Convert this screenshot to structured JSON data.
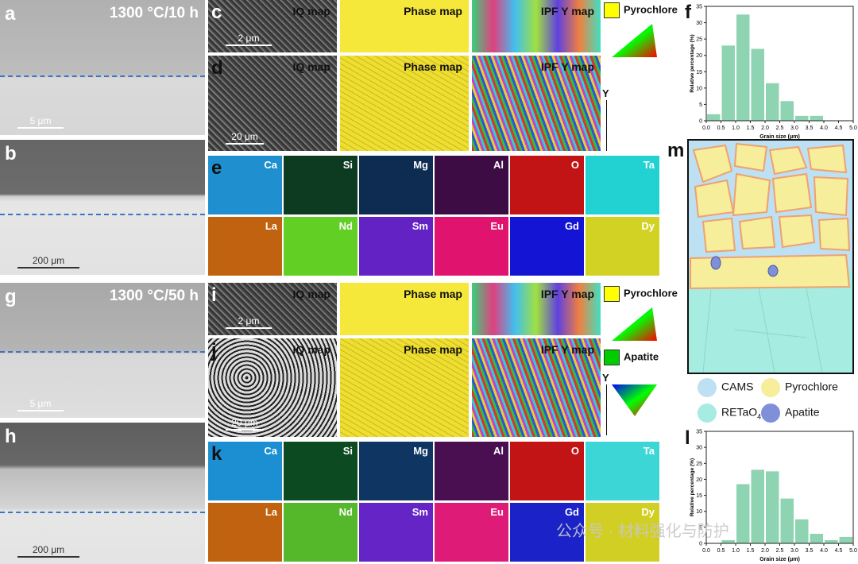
{
  "panels": {
    "a": {
      "label": "a",
      "title": "1300 °C/10 h",
      "scale": "5 μm"
    },
    "b": {
      "label": "b",
      "scale": "200 μm"
    },
    "c": {
      "label": "c",
      "scale": "2 μm",
      "maps": [
        "IQ map",
        "Phase map",
        "IPF Y map"
      ]
    },
    "d": {
      "label": "d",
      "scale": "20 μm",
      "maps": [
        "IQ map",
        "Phase map",
        "IPF Y map"
      ]
    },
    "e": {
      "label": "e",
      "elements": [
        {
          "name": "Ca",
          "color": "#1f8fd0"
        },
        {
          "name": "Si",
          "color": "#0d3b22"
        },
        {
          "name": "Mg",
          "color": "#0e2c52"
        },
        {
          "name": "Al",
          "color": "#3d0c44"
        },
        {
          "name": "O",
          "color": "#c21414"
        },
        {
          "name": "Ta",
          "color": "#22d2d2"
        },
        {
          "name": "La",
          "color": "#c0620f"
        },
        {
          "name": "Nd",
          "color": "#62cf24"
        },
        {
          "name": "Sm",
          "color": "#6222c4"
        },
        {
          "name": "Eu",
          "color": "#e0146e"
        },
        {
          "name": "Gd",
          "color": "#1414d4"
        },
        {
          "name": "Dy",
          "color": "#d2d224"
        }
      ]
    },
    "f": {
      "label": "f"
    },
    "g": {
      "label": "g",
      "title": "1300 °C/50 h",
      "scale": "5 μm"
    },
    "h": {
      "label": "h",
      "scale": "200 μm"
    },
    "i": {
      "label": "i",
      "scale": "2 μm",
      "maps": [
        "IQ map",
        "Phase map",
        "IPF Y map"
      ]
    },
    "j": {
      "label": "j",
      "scale": "20 μm",
      "maps": [
        "IQ map",
        "Phase map",
        "IPF Y map"
      ]
    },
    "k": {
      "label": "k",
      "elements": [
        {
          "name": "Ca",
          "color": "#1c8fd2"
        },
        {
          "name": "Si",
          "color": "#0c4a22"
        },
        {
          "name": "Mg",
          "color": "#0f3563"
        },
        {
          "name": "Al",
          "color": "#4a0f50"
        },
        {
          "name": "O",
          "color": "#c21414"
        },
        {
          "name": "Ta",
          "color": "#3cd6d6"
        },
        {
          "name": "La",
          "color": "#c0620f"
        },
        {
          "name": "Nd",
          "color": "#55b82a"
        },
        {
          "name": "Sm",
          "color": "#6424c6"
        },
        {
          "name": "Eu",
          "color": "#de1c78"
        },
        {
          "name": "Gd",
          "color": "#1a22c8"
        },
        {
          "name": "Dy",
          "color": "#d2cf24"
        }
      ]
    },
    "l": {
      "label": "l"
    },
    "m": {
      "label": "m",
      "legend": [
        {
          "text": "CAMS",
          "color": "#bde0f2"
        },
        {
          "text": "Pyrochlore",
          "color": "#f6ee9a"
        },
        {
          "text": "RETaO",
          "sub": "4",
          "color": "#a6ece0"
        },
        {
          "text": "Apatite",
          "color": "#7f8fd8"
        }
      ]
    }
  },
  "legend_top": {
    "text": "Pyrochlore",
    "color": "#ffff00"
  },
  "legend_bottom": [
    {
      "text": "Pyrochlore",
      "color": "#ffff00"
    },
    {
      "text": "Apatite",
      "color": "#00cc00"
    }
  ],
  "axis_label": "Y",
  "watermark": "公众号 · 材料强化与防护",
  "histograms": [
    {
      "type": "histogram",
      "bins": [
        0,
        0.5,
        1,
        1.5,
        2,
        2.5,
        3,
        3.5,
        4
      ],
      "values": [
        2,
        23,
        32.5,
        22,
        11.5,
        6,
        1.5,
        1.5
      ],
      "color": "#8fd4b2",
      "xlim": [
        0,
        5
      ],
      "ylim": [
        0,
        35
      ],
      "xticks": [
        {
          "value": 0,
          "label": "0.0"
        },
        0.5,
        {
          "value": 1,
          "label": "1.0"
        },
        1.5,
        {
          "value": 2,
          "label": "2.0"
        },
        2.5,
        {
          "value": 3,
          "label": "3.0"
        },
        3.5,
        {
          "value": 4,
          "label": "4.0"
        },
        4.5,
        {
          "value": 5,
          "label": "5.0"
        }
      ],
      "yticks": [
        0,
        5,
        10,
        15,
        20,
        25,
        30,
        35
      ],
      "xlabel": "Grain size (μm)",
      "ylabel": "Relative percentage (%)"
    },
    {
      "type": "histogram",
      "bins": [
        0,
        0.5,
        1,
        1.5,
        2,
        2.5,
        3,
        3.5,
        4,
        4.5,
        5
      ],
      "values": [
        0,
        1,
        18.5,
        23,
        22.5,
        14,
        7.5,
        3,
        1,
        2
      ],
      "color": "#8fd4b2",
      "xlim": [
        0,
        5
      ],
      "ylim": [
        0,
        35
      ],
      "xticks": [
        {
          "value": 0,
          "label": "0.0"
        },
        0.5,
        {
          "value": 1,
          "label": "1.0"
        },
        1.5,
        {
          "value": 2,
          "label": "2.0"
        },
        2.5,
        {
          "value": 3,
          "label": "3.0"
        },
        3.5,
        {
          "value": 4,
          "label": "4.0"
        },
        4.5,
        {
          "value": 5,
          "label": "5.0"
        }
      ],
      "yticks": [
        0,
        5,
        10,
        15,
        20,
        25,
        30,
        35
      ],
      "xlabel": "Grain size (μm)",
      "ylabel": "Relative percentage (%)"
    }
  ]
}
